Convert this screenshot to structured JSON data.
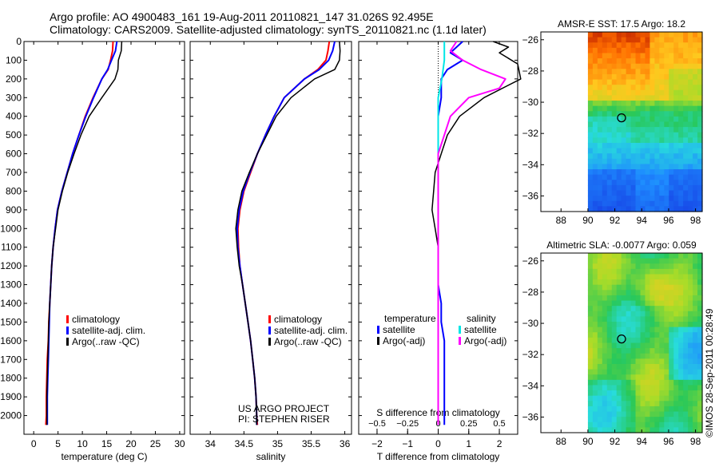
{
  "title_line1": "Argo profile: AO 4900483_161 19-Aug-2011 20110821_147 31.026S 92.495E",
  "title_line2": "Climatology: CARS2009. Satellite-adjusted climatology: synTS_20110821.nc (1.1d later)",
  "project_line1": "US ARGO PROJECT",
  "project_line2": "PI: STEPHEN RISER",
  "side_credit": "©IMOS 28-Sep-2011 00:28:49",
  "colors": {
    "climatology": "#ff0000",
    "satellite": "#0000ff",
    "argo": "#000000",
    "salinity_satellite": "#00e6e6",
    "salinity_argo": "#ff00ff"
  },
  "legend_profile": [
    "climatology",
    "satellite-adj. clim.",
    "Argo(..raw -QC)"
  ],
  "legend_diff": {
    "temp_header": "temperature",
    "sal_header": "salinity",
    "temp_items": [
      "satellite",
      "Argo(-adj)"
    ],
    "sal_items": [
      "satellite",
      "Argo(-adj)"
    ]
  },
  "chart_data": [
    {
      "type": "line",
      "name": "temperature-profile",
      "xlabel": "temperature (deg C)",
      "ylabel": "",
      "xlim": [
        -2,
        31
      ],
      "ylim": [
        2100,
        0
      ],
      "xticks": [
        0,
        5,
        10,
        15,
        20,
        25,
        30
      ],
      "yticks": [
        0,
        100,
        200,
        300,
        400,
        500,
        600,
        700,
        800,
        900,
        1000,
        1100,
        1200,
        1300,
        1400,
        1500,
        1600,
        1700,
        1800,
        1900,
        2000
      ],
      "series": [
        {
          "name": "climatology",
          "color": "#ff0000",
          "width": 2,
          "x": [
            16.3,
            16.2,
            15.8,
            15.3,
            14.0,
            12.2,
            10.6,
            9.3,
            8.0,
            6.9,
            5.8,
            4.9,
            4.4,
            4.0,
            3.7,
            3.5,
            3.3,
            3.1,
            3.0,
            2.8,
            2.7,
            2.6,
            2.6,
            2.5
          ],
          "y": [
            0,
            50,
            100,
            150,
            200,
            300,
            400,
            500,
            600,
            700,
            800,
            900,
            1000,
            1100,
            1200,
            1300,
            1400,
            1500,
            1600,
            1700,
            1800,
            1900,
            2000,
            2050
          ]
        },
        {
          "name": "satellite-adj. clim.",
          "color": "#0000ff",
          "width": 2,
          "x": [
            17.1,
            16.8,
            16.0,
            15.2,
            14.0,
            12.3,
            10.7,
            9.3,
            8.0,
            6.9,
            5.8,
            4.9,
            4.4,
            4.0,
            3.7,
            3.5,
            3.3,
            3.2,
            3.1,
            3.0,
            2.9,
            2.8,
            2.8,
            2.8
          ],
          "y": [
            0,
            50,
            100,
            150,
            200,
            300,
            400,
            500,
            600,
            700,
            800,
            900,
            1000,
            1100,
            1200,
            1300,
            1400,
            1500,
            1600,
            1700,
            1800,
            1900,
            2000,
            2050
          ]
        },
        {
          "name": "Argo(..raw -QC)",
          "color": "#000000",
          "width": 1.5,
          "x": [
            18.1,
            18.0,
            17.4,
            17.3,
            16.7,
            14.0,
            11.4,
            9.7,
            8.3,
            7.0,
            5.9,
            5.0,
            4.5,
            4.0,
            3.7,
            3.5,
            3.3,
            3.1,
            3.0,
            2.9,
            2.8,
            2.7,
            2.7,
            2.7
          ],
          "y": [
            0,
            50,
            100,
            150,
            200,
            300,
            400,
            500,
            600,
            700,
            800,
            900,
            1000,
            1100,
            1200,
            1300,
            1400,
            1500,
            1600,
            1700,
            1800,
            1900,
            2000,
            2050
          ]
        }
      ],
      "legend": "lower-center"
    },
    {
      "type": "line",
      "name": "salinity-profile",
      "xlabel": "salinity",
      "ylabel": "",
      "xlim": [
        33.7,
        36.1
      ],
      "ylim": [
        2100,
        0
      ],
      "xticks": [
        34,
        34.5,
        35,
        35.5,
        36
      ],
      "series": [
        {
          "name": "climatology",
          "color": "#ff0000",
          "width": 2,
          "x": [
            35.77,
            35.75,
            35.72,
            35.6,
            35.4,
            35.1,
            34.95,
            34.82,
            34.7,
            34.6,
            34.5,
            34.44,
            34.41,
            34.42,
            34.44,
            34.48,
            34.52,
            34.56,
            34.6,
            34.63,
            34.66,
            34.68,
            34.69,
            34.7
          ],
          "y": [
            0,
            50,
            100,
            150,
            200,
            300,
            400,
            500,
            600,
            700,
            800,
            900,
            1000,
            1100,
            1200,
            1300,
            1400,
            1500,
            1600,
            1700,
            1800,
            1900,
            2000,
            2050
          ]
        },
        {
          "name": "satellite-adj. clim.",
          "color": "#0000ff",
          "width": 2,
          "x": [
            35.85,
            35.82,
            35.76,
            35.62,
            35.4,
            35.1,
            34.95,
            34.82,
            34.7,
            34.59,
            34.49,
            34.43,
            34.4,
            34.41,
            34.44,
            34.48,
            34.52,
            34.56,
            34.6,
            34.63,
            34.66,
            34.68,
            34.69,
            34.69
          ],
          "y": [
            0,
            50,
            100,
            150,
            200,
            300,
            400,
            500,
            600,
            700,
            800,
            900,
            1000,
            1100,
            1200,
            1300,
            1400,
            1500,
            1600,
            1700,
            1800,
            1900,
            2000,
            2050
          ]
        },
        {
          "name": "Argo(..raw -QC)",
          "color": "#000000",
          "width": 1.5,
          "x": [
            35.92,
            35.93,
            35.92,
            35.85,
            35.55,
            35.2,
            34.98,
            34.84,
            34.7,
            34.58,
            34.47,
            34.41,
            34.38,
            34.4,
            34.43,
            34.48,
            34.52,
            34.56,
            34.6,
            34.63,
            34.66,
            34.68,
            34.69,
            34.69
          ],
          "y": [
            0,
            50,
            100,
            150,
            200,
            300,
            400,
            500,
            600,
            700,
            800,
            900,
            1000,
            1100,
            1200,
            1300,
            1400,
            1500,
            1600,
            1700,
            1800,
            1900,
            2000,
            2050
          ]
        }
      ],
      "legend": "lower-center"
    },
    {
      "type": "line",
      "name": "difference-profile",
      "xlabel": "T difference from climatology",
      "x2label": "S difference from climatology",
      "xlim": [
        -2.6,
        2.6
      ],
      "x2lim": [
        -0.65,
        0.65
      ],
      "ylim": [
        2100,
        0
      ],
      "xticks": [
        -2,
        -1,
        0,
        1,
        2
      ],
      "x2ticks": [
        -0.5,
        -0.25,
        0,
        0.25,
        0.5
      ],
      "x2tick_labels": [
        "-0.5",
        "-0.25",
        "0",
        "0.25",
        "0.5"
      ],
      "series": [
        {
          "name": "temperature satellite",
          "axis": "T",
          "color": "#0000ff",
          "width": 2,
          "x": [
            0.8,
            0.6,
            0.4,
            0.8,
            0.3,
            0.1,
            0.1,
            0.0,
            0.0,
            0.0,
            0.0,
            0.0,
            0.0,
            0.0,
            0.0,
            0.0,
            0.0,
            0.1,
            0.1,
            0.2,
            0.2,
            0.2,
            0.2
          ],
          "y": [
            0,
            30,
            60,
            100,
            150,
            200,
            300,
            400,
            500,
            600,
            700,
            800,
            900,
            1000,
            1100,
            1200,
            1300,
            1400,
            1500,
            1600,
            1700,
            1800,
            2050
          ]
        },
        {
          "name": "temperature Argo(-adj)",
          "axis": "T",
          "color": "#000000",
          "width": 1.5,
          "x": [
            1.8,
            2.3,
            2.0,
            2.6,
            2.7,
            1.5,
            0.7,
            0.3,
            0.1,
            -0.1,
            -0.15,
            -0.2,
            -0.1,
            0.0,
            0.0,
            0.0,
            0.0,
            0.0,
            0.0,
            0.0,
            0.0,
            0.0,
            0.0
          ],
          "y": [
            0,
            30,
            60,
            120,
            200,
            300,
            400,
            500,
            600,
            700,
            800,
            900,
            1000,
            1100,
            1200,
            1300,
            1400,
            1500,
            1600,
            1700,
            1800,
            1900,
            2050
          ]
        },
        {
          "name": "salinity satellite",
          "axis": "S",
          "color": "#00e6e6",
          "width": 2,
          "x": [
            0.05,
            0.05,
            0.03,
            0.0,
            0.0,
            0.0,
            0.0,
            0.0,
            0.0,
            0.0,
            0.0,
            0.0,
            0.0,
            0.0,
            0.0,
            0.0,
            0.0,
            0.0
          ],
          "y": [
            0,
            100,
            200,
            300,
            400,
            500,
            600,
            700,
            800,
            900,
            1000,
            1100,
            1200,
            1300,
            1400,
            1500,
            1700,
            2050
          ]
        },
        {
          "name": "salinity Argo(-adj)",
          "axis": "S",
          "color": "#ff00ff",
          "width": 2,
          "x": [
            0.15,
            0.1,
            0.2,
            0.35,
            0.55,
            0.5,
            0.25,
            0.1,
            0.05,
            0.0,
            0.0,
            0.0,
            0.0,
            0.0,
            0.0,
            0.0,
            0.0,
            0.0,
            0.0
          ],
          "y": [
            0,
            50,
            100,
            150,
            200,
            250,
            300,
            400,
            500,
            600,
            700,
            800,
            900,
            1000,
            1200,
            1400,
            1600,
            1800,
            2050
          ]
        }
      ],
      "legend": "lower-center"
    },
    {
      "type": "heatmap",
      "name": "sst-map",
      "title": "AMSR-E SST: 17.5 Argo: 18.2",
      "xlim": [
        86.5,
        98.5
      ],
      "ylim": [
        -37,
        -25.5
      ],
      "xticks": [
        88,
        90,
        92,
        94,
        96,
        98
      ],
      "yticks": [
        -26,
        -28,
        -30,
        -32,
        -34,
        -36
      ],
      "data_lon_range": [
        90,
        98.5
      ],
      "float_position": {
        "lon": 92.5,
        "lat": -31.0
      },
      "description_rows_top_to_bottom": "warm (red/orange) in the north, green band near -31 to -33, cool blue in the south"
    },
    {
      "type": "heatmap",
      "name": "sla-map",
      "title": "Altimetric SLA: -0.0077 Argo: 0.059",
      "xlim": [
        86.5,
        98.5
      ],
      "ylim": [
        -37,
        -25.5
      ],
      "xticks": [
        88,
        90,
        92,
        94,
        96,
        98
      ],
      "yticks": [
        -26,
        -28,
        -30,
        -32,
        -34,
        -36
      ],
      "data_lon_range": [
        90,
        98.5
      ],
      "float_position": {
        "lon": 92.5,
        "lat": -31.0
      }
    }
  ]
}
